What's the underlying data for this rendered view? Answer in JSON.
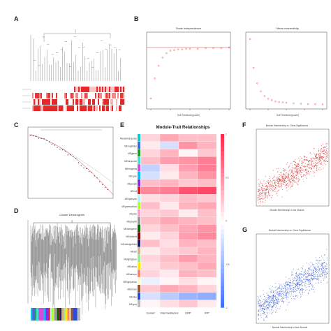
{
  "panels": {
    "a": {
      "label": "A"
    },
    "b": {
      "label": "B",
      "left_title": "Scale independence",
      "right_title": "Mean connectivity",
      "xlabel": "Soft Threshold (power)"
    },
    "c": {
      "label": "C"
    },
    "d": {
      "label": "D",
      "title": "Cluster Dendrogram"
    },
    "e": {
      "label": "E",
      "title": "Module-Trait Relationships",
      "modules": [
        "MEdarkturquoise",
        "MEroyalblue",
        "MEgreen",
        "MEturquoise",
        "MEmagenta",
        "MEcyan",
        "MEpurple",
        "MEred",
        "MElightcyan",
        "MEgreenyellow",
        "MEpink",
        "MEgrey60",
        "MEdarkgreen",
        "MEdarkred",
        "MEmidnightblue",
        "MEtan",
        "MElightgreen",
        "MEyellow",
        "MEsalmon",
        "MElightyellow",
        "MEbrown",
        "MEblue",
        "MEgrey"
      ],
      "traits": [
        "Gonad",
        "Intermediacies",
        "ERP",
        "IRP"
      ],
      "legend_ticks": [
        "1",
        "0.5",
        "0",
        "-0.5",
        "-1"
      ]
    },
    "f": {
      "label": "F",
      "title": "Module Membership vs. Gene Significance",
      "xlabel": "Module Membership in red Module"
    },
    "g": {
      "label": "G",
      "title": "Module Membership vs. Gene Significance",
      "xlabel": "Module Membership in blue Module"
    }
  },
  "colors": {
    "red": "#e03a3a",
    "pink": "#f4a3b8",
    "blue": "#3a5bd8",
    "scatter_red": "#d43434",
    "scatter_blue": "#3b5fd6"
  },
  "module_colors": [
    "#00ced1",
    "#4169e1",
    "#1aa31a",
    "#40e0d0",
    "#d54bd5",
    "#00bfff",
    "#8a2be2",
    "#e31a1c",
    "#b0f0ff",
    "#adff2f",
    "#ff9ec8",
    "#999999",
    "#006400",
    "#8b0000",
    "#191970",
    "#d2b48c",
    "#90ee90",
    "#ffeb00",
    "#fa8072",
    "#fffacd",
    "#a0522d",
    "#2b4dd8",
    "#bbbbbb"
  ]
}
